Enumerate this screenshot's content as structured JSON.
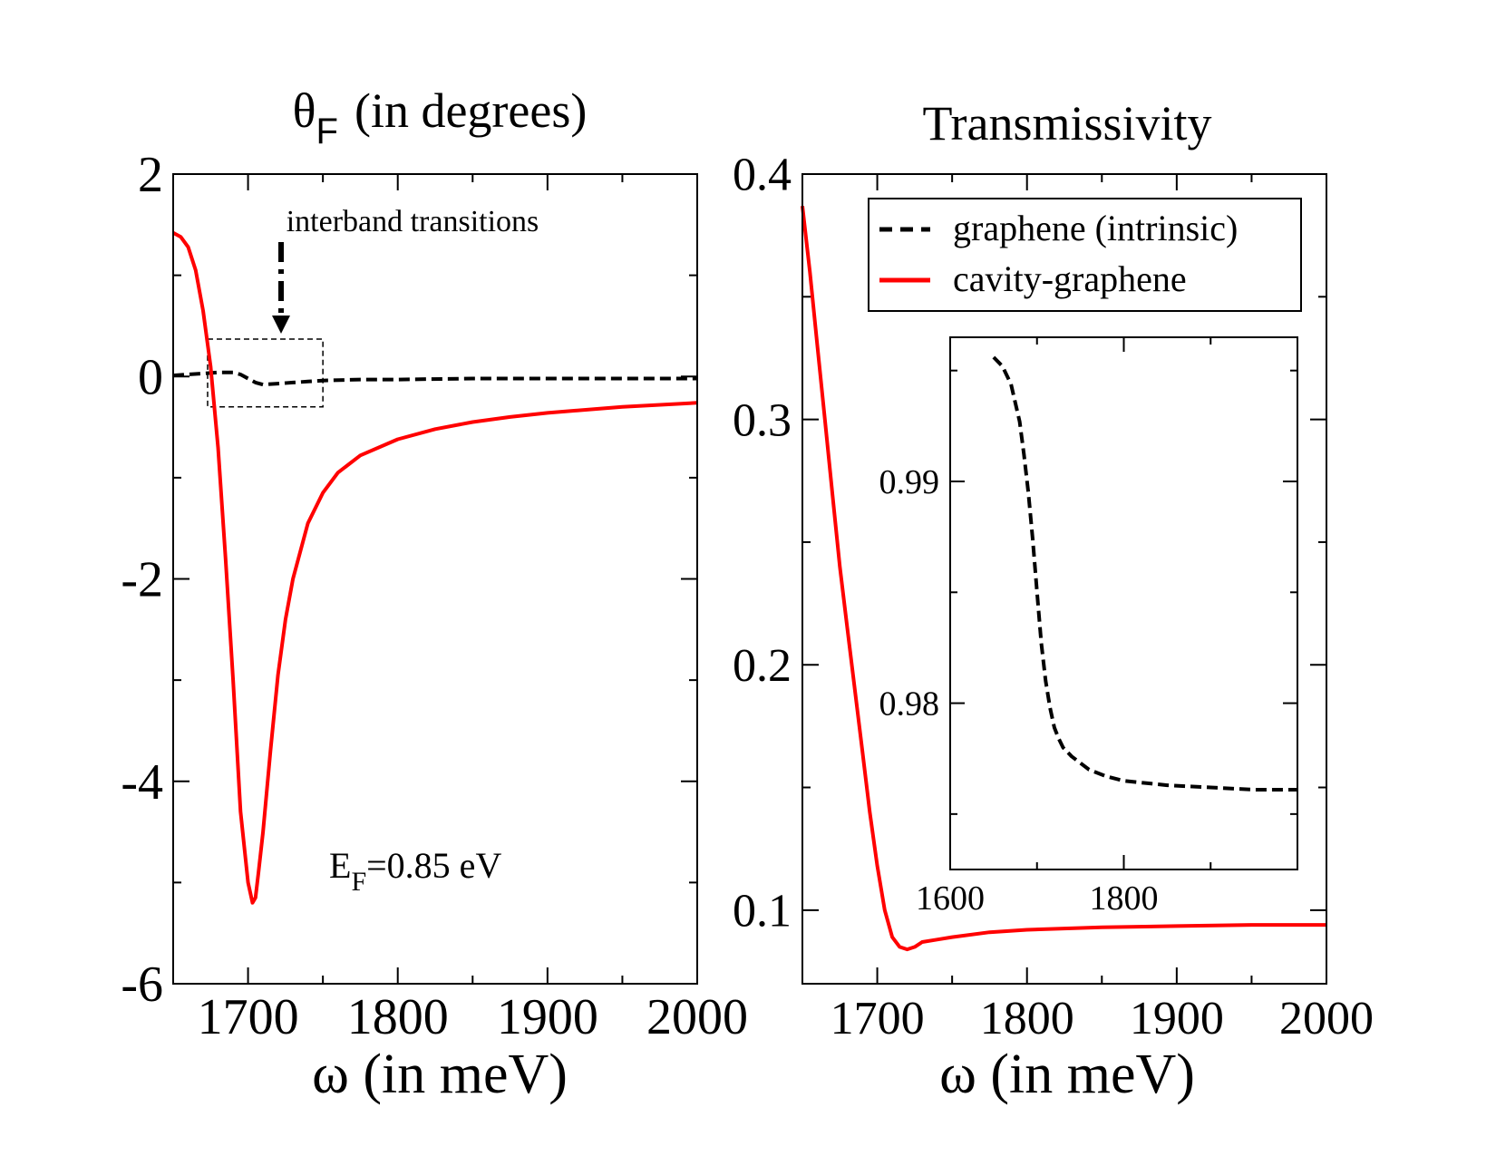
{
  "chart_data": [
    {
      "type": "line",
      "title_symbol": "θ",
      "title_sub": "F",
      "title_rest": "(in degrees)",
      "xlabel": "ω (in meV)",
      "ylabel": "",
      "xlim": [
        1650,
        2000
      ],
      "ylim": [
        -6,
        2
      ],
      "xticks": [
        1700,
        1800,
        1900,
        2000
      ],
      "xtick_labels": [
        "1700",
        "1800",
        "1900",
        "2000"
      ],
      "yticks": [
        2,
        0,
        -2,
        -4,
        -6
      ],
      "ytick_labels": [
        "2",
        "0",
        "-2",
        "-4",
        "-6"
      ],
      "annotation": "interband transitions",
      "ef_label_main": "E",
      "ef_label_sub": "F",
      "ef_label_rest": "=0.85 eV",
      "series": [
        {
          "name": "graphene (intrinsic)",
          "color": "#000000",
          "style": "dashed",
          "x": [
            1650,
            1660,
            1670,
            1680,
            1690,
            1695,
            1700,
            1705,
            1710,
            1720,
            1730,
            1740,
            1750,
            1775,
            1800,
            1850,
            1900,
            1950,
            2000
          ],
          "y": [
            0.01,
            0.02,
            0.03,
            0.04,
            0.04,
            0.02,
            -0.02,
            -0.06,
            -0.08,
            -0.07,
            -0.06,
            -0.05,
            -0.04,
            -0.03,
            -0.03,
            -0.02,
            -0.02,
            -0.02,
            -0.02
          ]
        },
        {
          "name": "cavity-graphene",
          "color": "#ff0000",
          "style": "solid",
          "x": [
            1650,
            1655,
            1660,
            1665,
            1670,
            1675,
            1680,
            1685,
            1690,
            1695,
            1700,
            1703,
            1705,
            1707,
            1710,
            1715,
            1720,
            1725,
            1730,
            1740,
            1750,
            1760,
            1775,
            1800,
            1825,
            1850,
            1875,
            1900,
            1950,
            2000
          ],
          "y": [
            1.42,
            1.38,
            1.28,
            1.05,
            0.65,
            0.1,
            -0.7,
            -1.8,
            -3.0,
            -4.3,
            -5.0,
            -5.2,
            -5.15,
            -4.9,
            -4.5,
            -3.7,
            -2.95,
            -2.4,
            -2.0,
            -1.45,
            -1.15,
            -0.95,
            -0.78,
            -0.62,
            -0.52,
            -0.45,
            -0.4,
            -0.36,
            -0.3,
            -0.26
          ]
        }
      ],
      "box": {
        "x": [
          1673,
          1750
        ],
        "y": [
          -0.3,
          0.37
        ]
      }
    },
    {
      "type": "line",
      "title": "Transmissivity",
      "xlabel": "ω (in meV)",
      "ylabel": "",
      "xlim": [
        1650,
        2000
      ],
      "ylim": [
        0.07,
        0.4
      ],
      "xticks": [
        1700,
        1800,
        1900,
        2000
      ],
      "xtick_labels": [
        "1700",
        "1800",
        "1900",
        "2000"
      ],
      "yticks": [
        0.4,
        0.3,
        0.2,
        0.1
      ],
      "ytick_labels": [
        "0.4",
        "0.3",
        "0.2",
        "0.1"
      ],
      "legend": [
        {
          "label": "graphene (intrinsic)",
          "color": "#000000",
          "style": "dashed"
        },
        {
          "label": "cavity-graphene",
          "color": "#ff0000",
          "style": "solid"
        }
      ],
      "series": [
        {
          "name": "cavity-graphene",
          "color": "#ff0000",
          "style": "solid",
          "x": [
            1650,
            1655,
            1660,
            1665,
            1670,
            1675,
            1680,
            1685,
            1690,
            1695,
            1700,
            1705,
            1710,
            1715,
            1720,
            1725,
            1730,
            1740,
            1750,
            1775,
            1800,
            1850,
            1900,
            1950,
            2000
          ],
          "y": [
            0.387,
            0.36,
            0.33,
            0.3,
            0.27,
            0.24,
            0.215,
            0.19,
            0.165,
            0.14,
            0.118,
            0.1,
            0.089,
            0.085,
            0.084,
            0.085,
            0.087,
            0.088,
            0.089,
            0.091,
            0.092,
            0.093,
            0.0935,
            0.094,
            0.094
          ]
        }
      ],
      "inset": {
        "xlim": [
          1600,
          2000
        ],
        "ylim": [
          0.9725,
          0.9965
        ],
        "xticks": [
          1600,
          1800
        ],
        "xtick_labels": [
          "1600",
          "1800"
        ],
        "yticks": [
          0.99,
          0.98
        ],
        "ytick_labels": [
          "0.99",
          "0.98"
        ],
        "series": [
          {
            "name": "graphene (intrinsic)",
            "color": "#000000",
            "style": "dashed",
            "x": [
              1650,
              1660,
              1670,
              1680,
              1685,
              1690,
              1695,
              1700,
              1705,
              1710,
              1715,
              1720,
              1725,
              1730,
              1740,
              1750,
              1760,
              1780,
              1800,
              1850,
              1900,
              1950,
              2000
            ],
            "y": [
              0.9956,
              0.9952,
              0.9944,
              0.9927,
              0.9912,
              0.9895,
              0.9874,
              0.985,
              0.9827,
              0.981,
              0.9798,
              0.9789,
              0.9784,
              0.978,
              0.9776,
              0.9773,
              0.977,
              0.9767,
              0.9765,
              0.9763,
              0.9762,
              0.9761,
              0.9761
            ]
          }
        ]
      }
    }
  ]
}
